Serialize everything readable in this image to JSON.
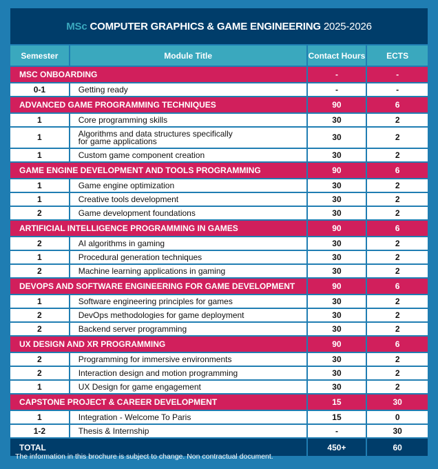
{
  "title": {
    "prefix": "MSc",
    "main": "COMPUTER GRAPHICS & GAME ENGINEERING",
    "year": "2025-2026"
  },
  "headers": {
    "semester": "Semester",
    "module": "Module Title",
    "hours": "Contact Hours",
    "ects": "ECTS"
  },
  "sections": [
    {
      "name": "MSC ONBOARDING",
      "hours": "-",
      "ects": "-",
      "modules": [
        {
          "semester": "0-1",
          "title": "Getting ready",
          "hours": "-",
          "ects": "-"
        }
      ]
    },
    {
      "name": "ADVANCED GAME PROGRAMMING TECHNIQUES",
      "hours": "90",
      "ects": "6",
      "modules": [
        {
          "semester": "1",
          "title": "Core programming skills",
          "hours": "30",
          "ects": "2"
        },
        {
          "semester": "1",
          "title": "Algorithms and data structures specifically for game applications",
          "hours": "30",
          "ects": "2"
        },
        {
          "semester": "1",
          "title": "Custom game component creation",
          "hours": "30",
          "ects": "2"
        }
      ]
    },
    {
      "name": "GAME ENGINE DEVELOPMENT AND TOOLS PROGRAMMING",
      "hours": "90",
      "ects": "6",
      "modules": [
        {
          "semester": "1",
          "title": "Game engine optimization",
          "hours": "30",
          "ects": "2"
        },
        {
          "semester": "1",
          "title": "Creative tools development",
          "hours": "30",
          "ects": "2"
        },
        {
          "semester": "2",
          "title": "Game development foundations",
          "hours": "30",
          "ects": "2"
        }
      ]
    },
    {
      "name": "ARTIFICIAL INTELLIGENCE PROGRAMMING IN GAMES",
      "hours": "90",
      "ects": "6",
      "modules": [
        {
          "semester": "2",
          "title": "AI algorithms in gaming",
          "hours": "30",
          "ects": "2"
        },
        {
          "semester": "1",
          "title": "Procedural generation techniques",
          "hours": "30",
          "ects": "2"
        },
        {
          "semester": "2",
          "title": "Machine learning applications in gaming",
          "hours": "30",
          "ects": "2"
        }
      ]
    },
    {
      "name": "DEVOPS AND SOFTWARE ENGINEERING FOR GAME DEVELOPMENT",
      "hours": "90",
      "ects": "6",
      "modules": [
        {
          "semester": "1",
          "title": "Software engineering principles for games",
          "hours": "30",
          "ects": "2"
        },
        {
          "semester": "2",
          "title": "DevOps methodologies for game deployment",
          "hours": "30",
          "ects": "2"
        },
        {
          "semester": "2",
          "title": "Backend server programming",
          "hours": "30",
          "ects": "2"
        }
      ]
    },
    {
      "name": "UX DESIGN AND XR PROGRAMMING",
      "hours": "90",
      "ects": "6",
      "modules": [
        {
          "semester": "2",
          "title": "Programming for immersive environments",
          "hours": "30",
          "ects": "2"
        },
        {
          "semester": "2",
          "title": "Interaction design and motion programming",
          "hours": "30",
          "ects": "2"
        },
        {
          "semester": "1",
          "title": "UX Design for game engagement",
          "hours": "30",
          "ects": "2"
        }
      ]
    },
    {
      "name": "CAPSTONE PROJECT & CAREER DEVELOPMENT",
      "hours": "15",
      "ects": "30",
      "modules": [
        {
          "semester": "1",
          "title": "Integration - Welcome To Paris",
          "hours": "15",
          "ects": "0"
        },
        {
          "semester": "1-2",
          "title": "Thesis & Internship",
          "hours": "-",
          "ects": "30"
        }
      ]
    }
  ],
  "total": {
    "label": "TOTAL",
    "hours": "450+",
    "ects": "60"
  },
  "footnote": "The information in this brochure is subject to change. Non contractual document."
}
